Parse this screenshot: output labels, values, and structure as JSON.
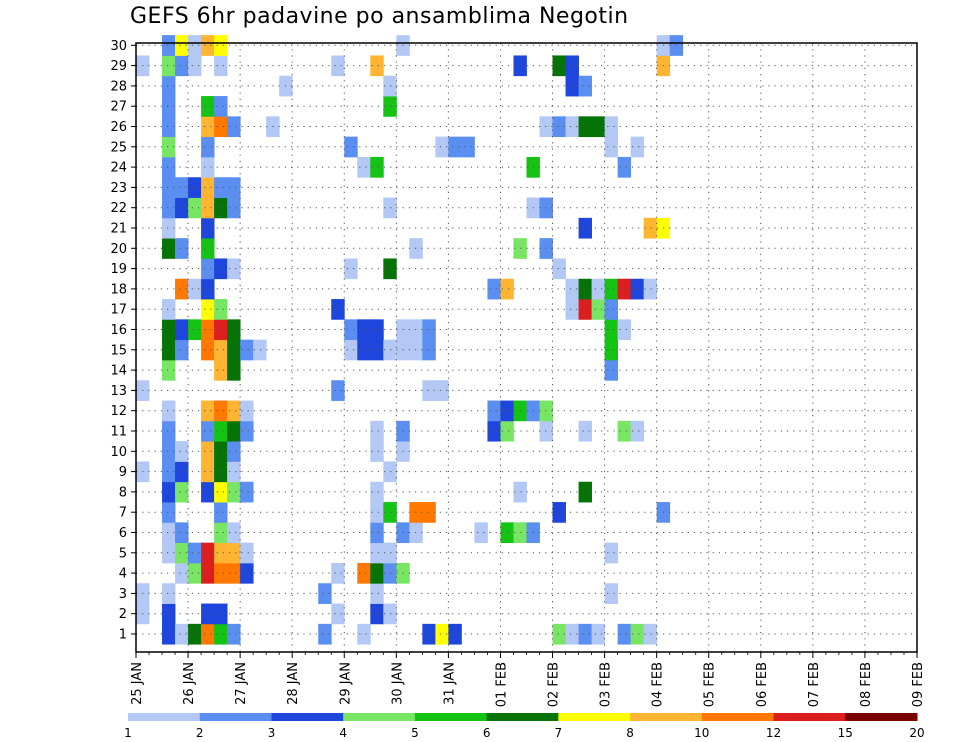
{
  "title": "GEFS 6hr padavine po ansamblima Negotin",
  "chart_data": {
    "type": "heatmap",
    "title": "GEFS 6hr padavine po ansamblima Negotin",
    "xlabel": "",
    "ylabel": "",
    "x_labels": [
      "25 JAN",
      "26 JAN",
      "27 JAN",
      "28 JAN",
      "29 JAN",
      "30 JAN",
      "31 JAN",
      "01 FEB",
      "02 FEB",
      "03 FEB",
      "04 FEB",
      "05 FEB",
      "06 FEB",
      "07 FEB",
      "08 FEB",
      "09 FEB"
    ],
    "y_labels": [
      "1",
      "2",
      "3",
      "4",
      "5",
      "6",
      "7",
      "8",
      "9",
      "10",
      "11",
      "12",
      "13",
      "14",
      "15",
      "16",
      "17",
      "18",
      "19",
      "20",
      "21",
      "22",
      "23",
      "24",
      "25",
      "26",
      "27",
      "28",
      "29",
      "30"
    ],
    "y_range": [
      1,
      30
    ],
    "time_step": "6hr",
    "grid": "dotted",
    "colorbar": {
      "ticks": [
        "1",
        "2",
        "3",
        "4",
        "5",
        "6",
        "7",
        "8",
        "10",
        "12",
        "15",
        "20"
      ],
      "colors": [
        "#b4c8f5",
        "#5a8ef0",
        "#1e46dc",
        "#78e664",
        "#14c314",
        "#067306",
        "#ffff00",
        "#ffb432",
        "#ff7800",
        "#dc1e1e",
        "#780000"
      ],
      "placement": "bottom"
    },
    "cells": [
      [
        1,
        2,
        3
      ],
      [
        1,
        3,
        1
      ],
      [
        1,
        4,
        6
      ],
      [
        1,
        5,
        9
      ],
      [
        1,
        6,
        5
      ],
      [
        1,
        7,
        2
      ],
      [
        1,
        14,
        2
      ],
      [
        1,
        17,
        1
      ],
      [
        1,
        22,
        3
      ],
      [
        1,
        23,
        7
      ],
      [
        1,
        24,
        3
      ],
      [
        1,
        32,
        4
      ],
      [
        1,
        33,
        1
      ],
      [
        1,
        34,
        2
      ],
      [
        1,
        35,
        1
      ],
      [
        1,
        37,
        2
      ],
      [
        1,
        38,
        4
      ],
      [
        1,
        39,
        1
      ],
      [
        2,
        0,
        1
      ],
      [
        2,
        2,
        3
      ],
      [
        2,
        5,
        3
      ],
      [
        2,
        6,
        3
      ],
      [
        2,
        15,
        1
      ],
      [
        2,
        18,
        3
      ],
      [
        2,
        19,
        1
      ],
      [
        3,
        0,
        1
      ],
      [
        3,
        2,
        1
      ],
      [
        3,
        14,
        2
      ],
      [
        3,
        18,
        1
      ],
      [
        3,
        36,
        1
      ],
      [
        4,
        3,
        1
      ],
      [
        4,
        4,
        4
      ],
      [
        4,
        5,
        10
      ],
      [
        4,
        6,
        9
      ],
      [
        4,
        7,
        9
      ],
      [
        4,
        8,
        3
      ],
      [
        4,
        15,
        1
      ],
      [
        4,
        17,
        9
      ],
      [
        4,
        18,
        6
      ],
      [
        4,
        19,
        2
      ],
      [
        4,
        20,
        4
      ],
      [
        5,
        2,
        1
      ],
      [
        5,
        3,
        4
      ],
      [
        5,
        4,
        2
      ],
      [
        5,
        5,
        10
      ],
      [
        5,
        6,
        8
      ],
      [
        5,
        7,
        8
      ],
      [
        5,
        8,
        1
      ],
      [
        5,
        18,
        1
      ],
      [
        5,
        19,
        1
      ],
      [
        5,
        36,
        1
      ],
      [
        6,
        2,
        1
      ],
      [
        6,
        3,
        2
      ],
      [
        6,
        6,
        4
      ],
      [
        6,
        7,
        1
      ],
      [
        6,
        18,
        2
      ],
      [
        6,
        20,
        2
      ],
      [
        6,
        21,
        1
      ],
      [
        6,
        26,
        1
      ],
      [
        6,
        28,
        5
      ],
      [
        6,
        29,
        4
      ],
      [
        6,
        30,
        2
      ],
      [
        7,
        2,
        2
      ],
      [
        7,
        6,
        2
      ],
      [
        7,
        18,
        1
      ],
      [
        7,
        19,
        5
      ],
      [
        7,
        21,
        9
      ],
      [
        7,
        22,
        9
      ],
      [
        7,
        32,
        3
      ],
      [
        7,
        40,
        2
      ],
      [
        8,
        2,
        3
      ],
      [
        8,
        3,
        4
      ],
      [
        8,
        5,
        3
      ],
      [
        8,
        6,
        7
      ],
      [
        8,
        7,
        4
      ],
      [
        8,
        8,
        2
      ],
      [
        8,
        18,
        1
      ],
      [
        8,
        29,
        1
      ],
      [
        8,
        34,
        6
      ],
      [
        9,
        0,
        1
      ],
      [
        9,
        2,
        2
      ],
      [
        9,
        3,
        3
      ],
      [
        9,
        5,
        8
      ],
      [
        9,
        6,
        6
      ],
      [
        9,
        7,
        1
      ],
      [
        9,
        19,
        1
      ],
      [
        10,
        2,
        2
      ],
      [
        10,
        3,
        1
      ],
      [
        10,
        5,
        8
      ],
      [
        10,
        6,
        6
      ],
      [
        10,
        7,
        2
      ],
      [
        10,
        18,
        1
      ],
      [
        10,
        20,
        1
      ],
      [
        11,
        2,
        2
      ],
      [
        11,
        5,
        2
      ],
      [
        11,
        6,
        5
      ],
      [
        11,
        7,
        6
      ],
      [
        11,
        8,
        2
      ],
      [
        11,
        18,
        1
      ],
      [
        11,
        20,
        2
      ],
      [
        11,
        27,
        3
      ],
      [
        11,
        28,
        4
      ],
      [
        11,
        31,
        1
      ],
      [
        11,
        34,
        1
      ],
      [
        11,
        37,
        4
      ],
      [
        11,
        38,
        1
      ],
      [
        12,
        2,
        1
      ],
      [
        12,
        5,
        8
      ],
      [
        12,
        6,
        9
      ],
      [
        12,
        7,
        8
      ],
      [
        12,
        8,
        1
      ],
      [
        12,
        27,
        2
      ],
      [
        12,
        28,
        3
      ],
      [
        12,
        29,
        5
      ],
      [
        12,
        30,
        2
      ],
      [
        12,
        31,
        4
      ],
      [
        13,
        0,
        1
      ],
      [
        13,
        15,
        2
      ],
      [
        13,
        22,
        1
      ],
      [
        13,
        23,
        1
      ],
      [
        14,
        2,
        4
      ],
      [
        14,
        6,
        8
      ],
      [
        14,
        7,
        6
      ],
      [
        14,
        36,
        2
      ],
      [
        15,
        2,
        6
      ],
      [
        15,
        3,
        2
      ],
      [
        15,
        5,
        9
      ],
      [
        15,
        6,
        8
      ],
      [
        15,
        7,
        6
      ],
      [
        15,
        8,
        2
      ],
      [
        15,
        9,
        1
      ],
      [
        15,
        16,
        1
      ],
      [
        15,
        17,
        3
      ],
      [
        15,
        18,
        3
      ],
      [
        15,
        19,
        1
      ],
      [
        15,
        20,
        1
      ],
      [
        15,
        21,
        1
      ],
      [
        15,
        22,
        2
      ],
      [
        15,
        36,
        5
      ],
      [
        16,
        2,
        6
      ],
      [
        16,
        3,
        3
      ],
      [
        16,
        4,
        5
      ],
      [
        16,
        5,
        9
      ],
      [
        16,
        6,
        10
      ],
      [
        16,
        7,
        6
      ],
      [
        16,
        16,
        2
      ],
      [
        16,
        17,
        3
      ],
      [
        16,
        18,
        3
      ],
      [
        16,
        20,
        1
      ],
      [
        16,
        21,
        1
      ],
      [
        16,
        22,
        2
      ],
      [
        16,
        36,
        5
      ],
      [
        16,
        37,
        1
      ],
      [
        17,
        2,
        1
      ],
      [
        17,
        5,
        7
      ],
      [
        17,
        6,
        4
      ],
      [
        17,
        15,
        3
      ],
      [
        17,
        33,
        1
      ],
      [
        17,
        34,
        10
      ],
      [
        17,
        35,
        4
      ],
      [
        17,
        36,
        2
      ],
      [
        18,
        3,
        9
      ],
      [
        18,
        4,
        1
      ],
      [
        18,
        5,
        3
      ],
      [
        18,
        27,
        2
      ],
      [
        18,
        28,
        8
      ],
      [
        18,
        33,
        1
      ],
      [
        18,
        34,
        6
      ],
      [
        18,
        35,
        1
      ],
      [
        18,
        36,
        5
      ],
      [
        18,
        37,
        10
      ],
      [
        18,
        38,
        3
      ],
      [
        18,
        39,
        1
      ],
      [
        19,
        5,
        2
      ],
      [
        19,
        6,
        3
      ],
      [
        19,
        7,
        1
      ],
      [
        19,
        16,
        1
      ],
      [
        19,
        19,
        6
      ],
      [
        19,
        32,
        1
      ],
      [
        20,
        2,
        6
      ],
      [
        20,
        3,
        2
      ],
      [
        20,
        5,
        5
      ],
      [
        20,
        21,
        1
      ],
      [
        20,
        29,
        4
      ],
      [
        20,
        31,
        2
      ],
      [
        21,
        2,
        1
      ],
      [
        21,
        5,
        3
      ],
      [
        21,
        34,
        3
      ],
      [
        21,
        39,
        8
      ],
      [
        21,
        40,
        7
      ],
      [
        22,
        2,
        2
      ],
      [
        22,
        3,
        3
      ],
      [
        22,
        4,
        4
      ],
      [
        22,
        5,
        8
      ],
      [
        22,
        6,
        6
      ],
      [
        22,
        7,
        2
      ],
      [
        22,
        19,
        1
      ],
      [
        22,
        30,
        1
      ],
      [
        22,
        31,
        2
      ],
      [
        23,
        2,
        2
      ],
      [
        23,
        3,
        2
      ],
      [
        23,
        4,
        3
      ],
      [
        23,
        5,
        8
      ],
      [
        23,
        6,
        2
      ],
      [
        23,
        7,
        2
      ],
      [
        24,
        2,
        2
      ],
      [
        24,
        5,
        1
      ],
      [
        24,
        17,
        1
      ],
      [
        24,
        18,
        5
      ],
      [
        24,
        30,
        5
      ],
      [
        24,
        37,
        2
      ],
      [
        25,
        2,
        4
      ],
      [
        25,
        5,
        2
      ],
      [
        25,
        16,
        2
      ],
      [
        25,
        23,
        1
      ],
      [
        25,
        24,
        2
      ],
      [
        25,
        25,
        2
      ],
      [
        25,
        36,
        1
      ],
      [
        25,
        38,
        1
      ],
      [
        26,
        2,
        2
      ],
      [
        26,
        5,
        8
      ],
      [
        26,
        6,
        9
      ],
      [
        26,
        7,
        2
      ],
      [
        26,
        10,
        1
      ],
      [
        26,
        31,
        1
      ],
      [
        26,
        32,
        2
      ],
      [
        26,
        33,
        1
      ],
      [
        26,
        34,
        6
      ],
      [
        26,
        35,
        6
      ],
      [
        26,
        36,
        1
      ],
      [
        27,
        2,
        2
      ],
      [
        27,
        5,
        5
      ],
      [
        27,
        6,
        2
      ],
      [
        27,
        19,
        5
      ],
      [
        28,
        2,
        2
      ],
      [
        28,
        11,
        1
      ],
      [
        28,
        19,
        1
      ],
      [
        28,
        33,
        3
      ],
      [
        28,
        34,
        2
      ],
      [
        29,
        0,
        1
      ],
      [
        29,
        2,
        4
      ],
      [
        29,
        3,
        2
      ],
      [
        29,
        4,
        1
      ],
      [
        29,
        6,
        1
      ],
      [
        29,
        15,
        1
      ],
      [
        29,
        18,
        8
      ],
      [
        29,
        29,
        3
      ],
      [
        29,
        32,
        6
      ],
      [
        29,
        33,
        3
      ],
      [
        29,
        40,
        8
      ],
      [
        30,
        2,
        2
      ],
      [
        30,
        3,
        7
      ],
      [
        30,
        4,
        1
      ],
      [
        30,
        5,
        8
      ],
      [
        30,
        6,
        7
      ],
      [
        30,
        20,
        1
      ],
      [
        30,
        40,
        1
      ],
      [
        30,
        41,
        2
      ]
    ]
  }
}
